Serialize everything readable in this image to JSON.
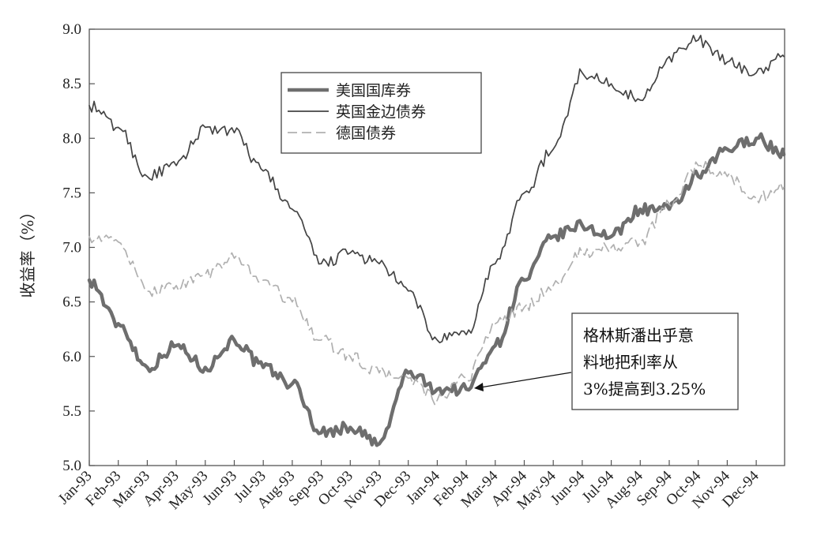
{
  "chart_data": {
    "type": "line",
    "title": "",
    "xlabel": "",
    "ylabel": "收益率（%）",
    "ylim": [
      5.0,
      9.0
    ],
    "yticks": [
      "5.0",
      "5.5",
      "6.0",
      "6.5",
      "7.0",
      "7.5",
      "8.0",
      "8.5",
      "9.0"
    ],
    "x_tick_labels": [
      "Jan-93",
      "Feb-93",
      "Mar-93",
      "Apr-93",
      "May-93",
      "Jun-93",
      "Jul-93",
      "Aug-93",
      "Sep-93",
      "Oct-93",
      "Nov-93",
      "Dec-93",
      "Jan-94",
      "Feb-94",
      "Mar-94",
      "Apr-94",
      "May-94",
      "Jun-94",
      "Jul-94",
      "Aug-94",
      "Sep-94",
      "Oct-94",
      "Nov-94",
      "Dec-94"
    ],
    "x": [
      "Jan-93",
      "Feb-93",
      "Mar-93",
      "Apr-93",
      "May-93",
      "Jun-93",
      "Jul-93",
      "Aug-93",
      "Sep-93",
      "Oct-93",
      "Nov-93",
      "Dec-93",
      "Jan-94",
      "Feb-94",
      "Mar-94",
      "Apr-94",
      "May-94",
      "Jun-94",
      "Jul-94",
      "Aug-94",
      "Sep-94",
      "Oct-94",
      "Nov-94",
      "Dec-94",
      "Dec-94 (end)"
    ],
    "grid": false,
    "legend_position": "top-center",
    "series": [
      {
        "name": "美国国库券",
        "color": "#6e6e6e",
        "style": "thick-solid",
        "values": [
          6.7,
          6.3,
          5.9,
          6.1,
          5.9,
          6.15,
          5.9,
          5.75,
          5.3,
          5.35,
          5.2,
          5.85,
          5.7,
          5.7,
          6.1,
          6.7,
          7.1,
          7.2,
          7.1,
          7.35,
          7.35,
          7.65,
          7.9,
          8.0,
          7.85
        ]
      },
      {
        "name": "英国金边债券",
        "color": "#444444",
        "style": "thin-solid",
        "values": [
          8.3,
          8.1,
          7.65,
          7.75,
          8.1,
          8.05,
          7.7,
          7.35,
          6.85,
          6.95,
          6.85,
          6.6,
          6.15,
          6.2,
          6.85,
          7.5,
          7.9,
          8.6,
          8.5,
          8.35,
          8.75,
          8.9,
          8.7,
          8.6,
          8.75
        ]
      },
      {
        "name": "德国债券",
        "color": "#b0b0b0",
        "style": "dashed",
        "values": [
          7.1,
          7.05,
          6.6,
          6.65,
          6.75,
          6.9,
          6.7,
          6.5,
          6.15,
          6.0,
          5.85,
          5.8,
          5.6,
          5.8,
          6.3,
          6.45,
          6.65,
          6.95,
          7.0,
          7.05,
          7.4,
          7.75,
          7.65,
          7.45,
          7.55
        ]
      }
    ],
    "annotation": {
      "lines": [
        "格林斯潘出乎意",
        "料地把利率从",
        "3%提高到3.25%"
      ],
      "points_to_x": "Feb-94"
    }
  }
}
